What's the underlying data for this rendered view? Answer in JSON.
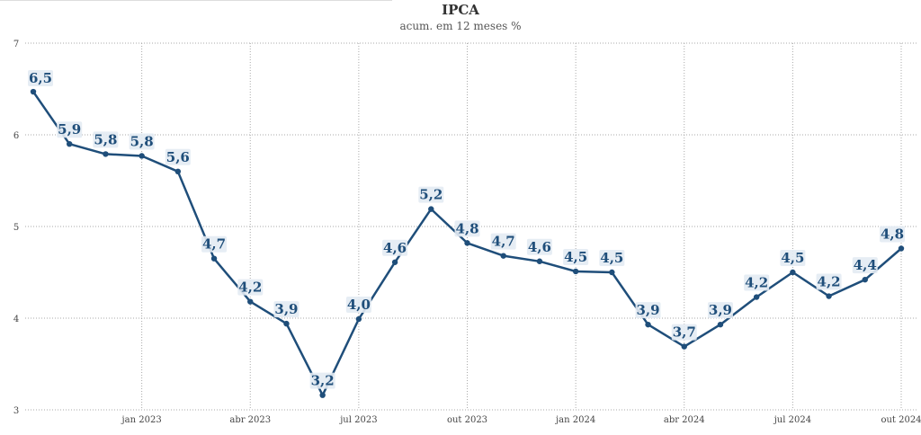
{
  "chart_data": {
    "type": "line",
    "title": "IPCA",
    "subtitle": "acum. em 12 meses %",
    "xlabel": "",
    "ylabel": "",
    "ylim": [
      3,
      7
    ],
    "y_ticks": [
      "3",
      "4",
      "5",
      "6",
      "7"
    ],
    "x_ticks": [
      "jan 2023",
      "abr 2023",
      "jul 2023",
      "out 2023",
      "jan 2024",
      "abr 2024",
      "jul 2024",
      "out 2024"
    ],
    "grid": true,
    "line_color": "#1f4e7a",
    "label_bg_color": "#e3ebf3",
    "series": [
      {
        "x": [
          "2022-10",
          "2022-11",
          "2022-12",
          "2023-01",
          "2023-02",
          "2023-03",
          "2023-04",
          "2023-05",
          "2023-06",
          "2023-07",
          "2023-08",
          "2023-09",
          "2023-10",
          "2023-11",
          "2023-12",
          "2024-01",
          "2024-02",
          "2024-03",
          "2024-04",
          "2024-05",
          "2024-06",
          "2024-07",
          "2024-08",
          "2024-09",
          "2024-10"
        ],
        "values": [
          6.47,
          5.9,
          5.79,
          5.77,
          5.6,
          4.65,
          4.18,
          3.94,
          3.16,
          3.99,
          4.61,
          5.19,
          4.82,
          4.68,
          4.62,
          4.51,
          4.5,
          3.93,
          3.69,
          3.93,
          4.23,
          4.5,
          4.24,
          4.42,
          4.76
        ],
        "labels": [
          "6,5",
          "5,9",
          "5,8",
          "5,8",
          "5,6",
          "4,7",
          "4,2",
          "3,9",
          "3,2",
          "4,0",
          "4,6",
          "5,2",
          "4,8",
          "4,7",
          "4,6",
          "4,5",
          "4,5",
          "3,9",
          "3,7",
          "3,9",
          "4,2",
          "4,5",
          "4,2",
          "4,4",
          "4,8"
        ]
      }
    ]
  }
}
